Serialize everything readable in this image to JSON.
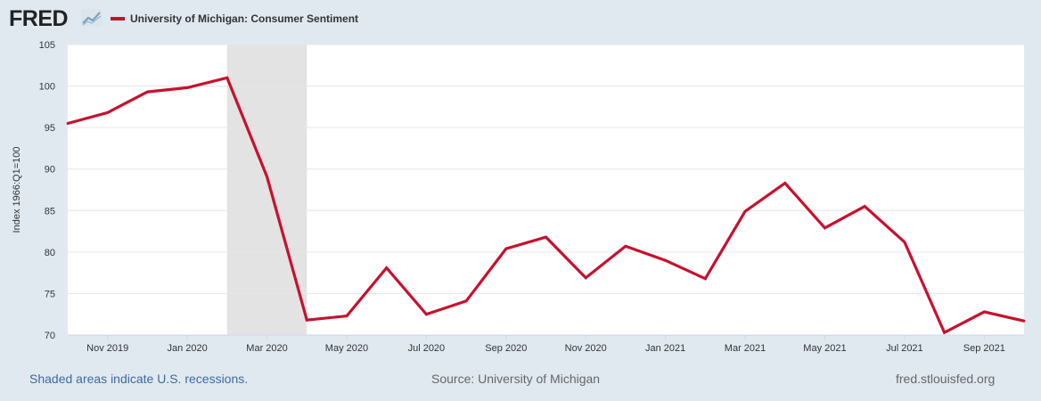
{
  "header": {
    "logo_text": "FRED",
    "legend_label": "University of Michigan: Consumer Sentiment"
  },
  "colors": {
    "series": "#c8102e",
    "recession_shade": "#e3e3e3",
    "background": "#e1e9f0",
    "plot": "#ffffff"
  },
  "icons": {
    "logo_mark": "trend-line-chart-icon"
  },
  "footer": {
    "recession_note": "Shaded areas indicate U.S. recessions.",
    "source": "Source: University of Michigan",
    "url": "fred.stlouisfed.org"
  },
  "chart_data": {
    "type": "line",
    "title": "University of Michigan: Consumer Sentiment",
    "ylabel": "Index 1966:Q1=100",
    "xlabel": "",
    "ylim": [
      70,
      105
    ],
    "yticks": [
      70,
      75,
      80,
      85,
      90,
      95,
      100,
      105
    ],
    "xlim": [
      "2019-10",
      "2021-10"
    ],
    "xticks": [
      {
        "date": "2019-11",
        "label": "Nov 2019"
      },
      {
        "date": "2020-01",
        "label": "Jan 2020"
      },
      {
        "date": "2020-03",
        "label": "Mar 2020"
      },
      {
        "date": "2020-05",
        "label": "May 2020"
      },
      {
        "date": "2020-07",
        "label": "Jul 2020"
      },
      {
        "date": "2020-09",
        "label": "Sep 2020"
      },
      {
        "date": "2020-11",
        "label": "Nov 2020"
      },
      {
        "date": "2021-01",
        "label": "Jan 2021"
      },
      {
        "date": "2021-03",
        "label": "Mar 2021"
      },
      {
        "date": "2021-05",
        "label": "May 2021"
      },
      {
        "date": "2021-07",
        "label": "Jul 2021"
      },
      {
        "date": "2021-09",
        "label": "Sep 2021"
      }
    ],
    "grid": true,
    "legend": "top-left",
    "recession": {
      "start": "2020-02",
      "end": "2020-04"
    },
    "series": [
      {
        "name": "University of Michigan: Consumer Sentiment",
        "color": "#c8102e",
        "x": [
          "2019-10",
          "2019-11",
          "2019-12",
          "2020-01",
          "2020-02",
          "2020-03",
          "2020-04",
          "2020-05",
          "2020-06",
          "2020-07",
          "2020-08",
          "2020-09",
          "2020-10",
          "2020-11",
          "2020-12",
          "2021-01",
          "2021-02",
          "2021-03",
          "2021-04",
          "2021-05",
          "2021-06",
          "2021-07",
          "2021-08",
          "2021-09",
          "2021-10"
        ],
        "values": [
          95.5,
          96.8,
          99.3,
          99.8,
          101.0,
          89.1,
          71.8,
          72.3,
          78.1,
          72.5,
          74.1,
          80.4,
          81.8,
          76.9,
          80.7,
          79.0,
          76.8,
          84.9,
          88.3,
          82.9,
          85.5,
          81.2,
          70.3,
          72.8,
          71.7
        ]
      }
    ]
  }
}
